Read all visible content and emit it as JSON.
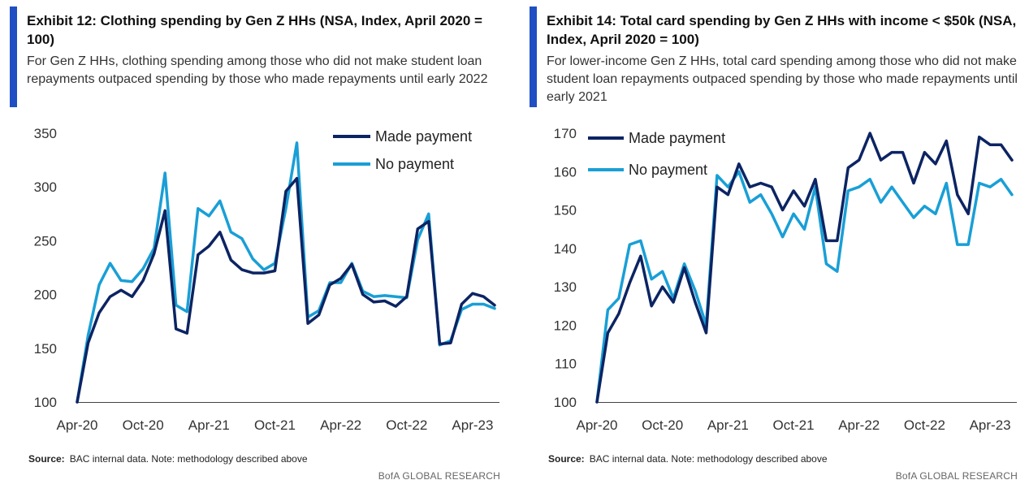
{
  "colors": {
    "made": "#0c2463",
    "nopay": "#199fd6",
    "accent": "#1f4fc2"
  },
  "chart_data": [
    {
      "type": "line",
      "title": "Exhibit 12: Clothing spending by Gen Z HHs (NSA, Index, April 2020 = 100)",
      "subtitle": "For Gen Z HHs, clothing spending among those who did not make student loan repayments outpaced spending by those who made repayments until early 2022",
      "x": [
        "2020-04",
        "2020-05",
        "2020-06",
        "2020-07",
        "2020-08",
        "2020-09",
        "2020-10",
        "2020-11",
        "2020-12",
        "2021-01",
        "2021-02",
        "2021-03",
        "2021-04",
        "2021-05",
        "2021-06",
        "2021-07",
        "2021-08",
        "2021-09",
        "2021-10",
        "2021-11",
        "2021-12",
        "2022-01",
        "2022-02",
        "2022-03",
        "2022-04",
        "2022-05",
        "2022-06",
        "2022-07",
        "2022-08",
        "2022-09",
        "2022-10",
        "2022-11",
        "2022-12",
        "2023-01",
        "2023-02",
        "2023-03",
        "2023-04",
        "2023-05",
        "2023-06"
      ],
      "series": [
        {
          "name": "Made payment",
          "values": [
            100,
            155,
            183,
            198,
            204,
            198,
            213,
            238,
            278,
            168,
            164,
            237,
            245,
            258,
            232,
            223,
            220,
            220,
            222,
            296,
            308,
            173,
            181,
            209,
            215,
            228,
            200,
            193,
            194,
            189,
            198,
            261,
            268,
            154,
            155,
            191,
            201,
            198,
            190
          ]
        },
        {
          "name": "No payment",
          "values": [
            100,
            162,
            209,
            229,
            213,
            212,
            224,
            243,
            313,
            190,
            184,
            280,
            273,
            287,
            258,
            252,
            233,
            223,
            229,
            280,
            341,
            179,
            185,
            211,
            211,
            229,
            203,
            198,
            199,
            198,
            197,
            251,
            275,
            153,
            157,
            186,
            191,
            191,
            187
          ]
        }
      ],
      "xtick_labels": [
        {
          "x": "2020-04",
          "label": "Apr-20"
        },
        {
          "x": "2020-10",
          "label": "Oct-20"
        },
        {
          "x": "2021-04",
          "label": "Apr-21"
        },
        {
          "x": "2021-10",
          "label": "Oct-21"
        },
        {
          "x": "2022-04",
          "label": "Apr-22"
        },
        {
          "x": "2022-10",
          "label": "Oct-22"
        },
        {
          "x": "2023-04",
          "label": "Apr-23"
        }
      ],
      "ylim": [
        100,
        350
      ],
      "yticks": [
        "100",
        "150",
        "200",
        "250",
        "300",
        "350"
      ],
      "grid": false,
      "legend": "top-right",
      "xlabel": "",
      "ylabel": "",
      "source_label": "Source:",
      "source_text": "BAC internal data. Note: methodology described  above",
      "brand": "BofA GLOBAL RESEARCH"
    },
    {
      "type": "line",
      "title": "Exhibit 14: Total card spending by Gen Z HHs with income < $50k (NSA, Index, April 2020 = 100)",
      "subtitle": "For lower-income Gen Z HHs, total card spending among those who did not make student loan repayments outpaced spending by those who made repayments until early 2021",
      "x": [
        "2020-04",
        "2020-05",
        "2020-06",
        "2020-07",
        "2020-08",
        "2020-09",
        "2020-10",
        "2020-11",
        "2020-12",
        "2021-01",
        "2021-02",
        "2021-03",
        "2021-04",
        "2021-05",
        "2021-06",
        "2021-07",
        "2021-08",
        "2021-09",
        "2021-10",
        "2021-11",
        "2021-12",
        "2022-01",
        "2022-02",
        "2022-03",
        "2022-04",
        "2022-05",
        "2022-06",
        "2022-07",
        "2022-08",
        "2022-09",
        "2022-10",
        "2022-11",
        "2022-12",
        "2023-01",
        "2023-02",
        "2023-03",
        "2023-04",
        "2023-05",
        "2023-06"
      ],
      "series": [
        {
          "name": "Made payment",
          "values": [
            100,
            118,
            123,
            131,
            138,
            125,
            130,
            126,
            135,
            126,
            118,
            156,
            154,
            162,
            156,
            157,
            156,
            150,
            155,
            151,
            158,
            142,
            142,
            161,
            163,
            170,
            163,
            165,
            165,
            157,
            165,
            162,
            168,
            154,
            149,
            169,
            167,
            167,
            163
          ]
        },
        {
          "name": "No payment",
          "values": [
            100,
            124,
            127,
            141,
            142,
            132,
            134,
            127,
            136,
            129,
            120,
            159,
            156,
            160,
            152,
            154,
            149,
            143,
            149,
            145,
            156,
            136,
            134,
            155,
            156,
            158,
            152,
            156,
            152,
            148,
            151,
            149,
            157,
            141,
            141,
            157,
            156,
            158,
            154
          ]
        }
      ],
      "xtick_labels": [
        {
          "x": "2020-04",
          "label": "Apr-20"
        },
        {
          "x": "2020-10",
          "label": "Oct-20"
        },
        {
          "x": "2021-04",
          "label": "Apr-21"
        },
        {
          "x": "2021-10",
          "label": "Oct-21"
        },
        {
          "x": "2022-04",
          "label": "Apr-22"
        },
        {
          "x": "2022-10",
          "label": "Oct-22"
        },
        {
          "x": "2023-04",
          "label": "Apr-23"
        }
      ],
      "ylim": [
        100,
        170
      ],
      "yticks": [
        "100",
        "110",
        "120",
        "130",
        "140",
        "150",
        "160",
        "170"
      ],
      "grid": false,
      "legend": "top-left",
      "xlabel": "",
      "ylabel": "",
      "source_label": "Source:",
      "source_text": "BAC internal data. Note: methodology described  above",
      "brand": "BofA GLOBAL RESEARCH"
    }
  ]
}
